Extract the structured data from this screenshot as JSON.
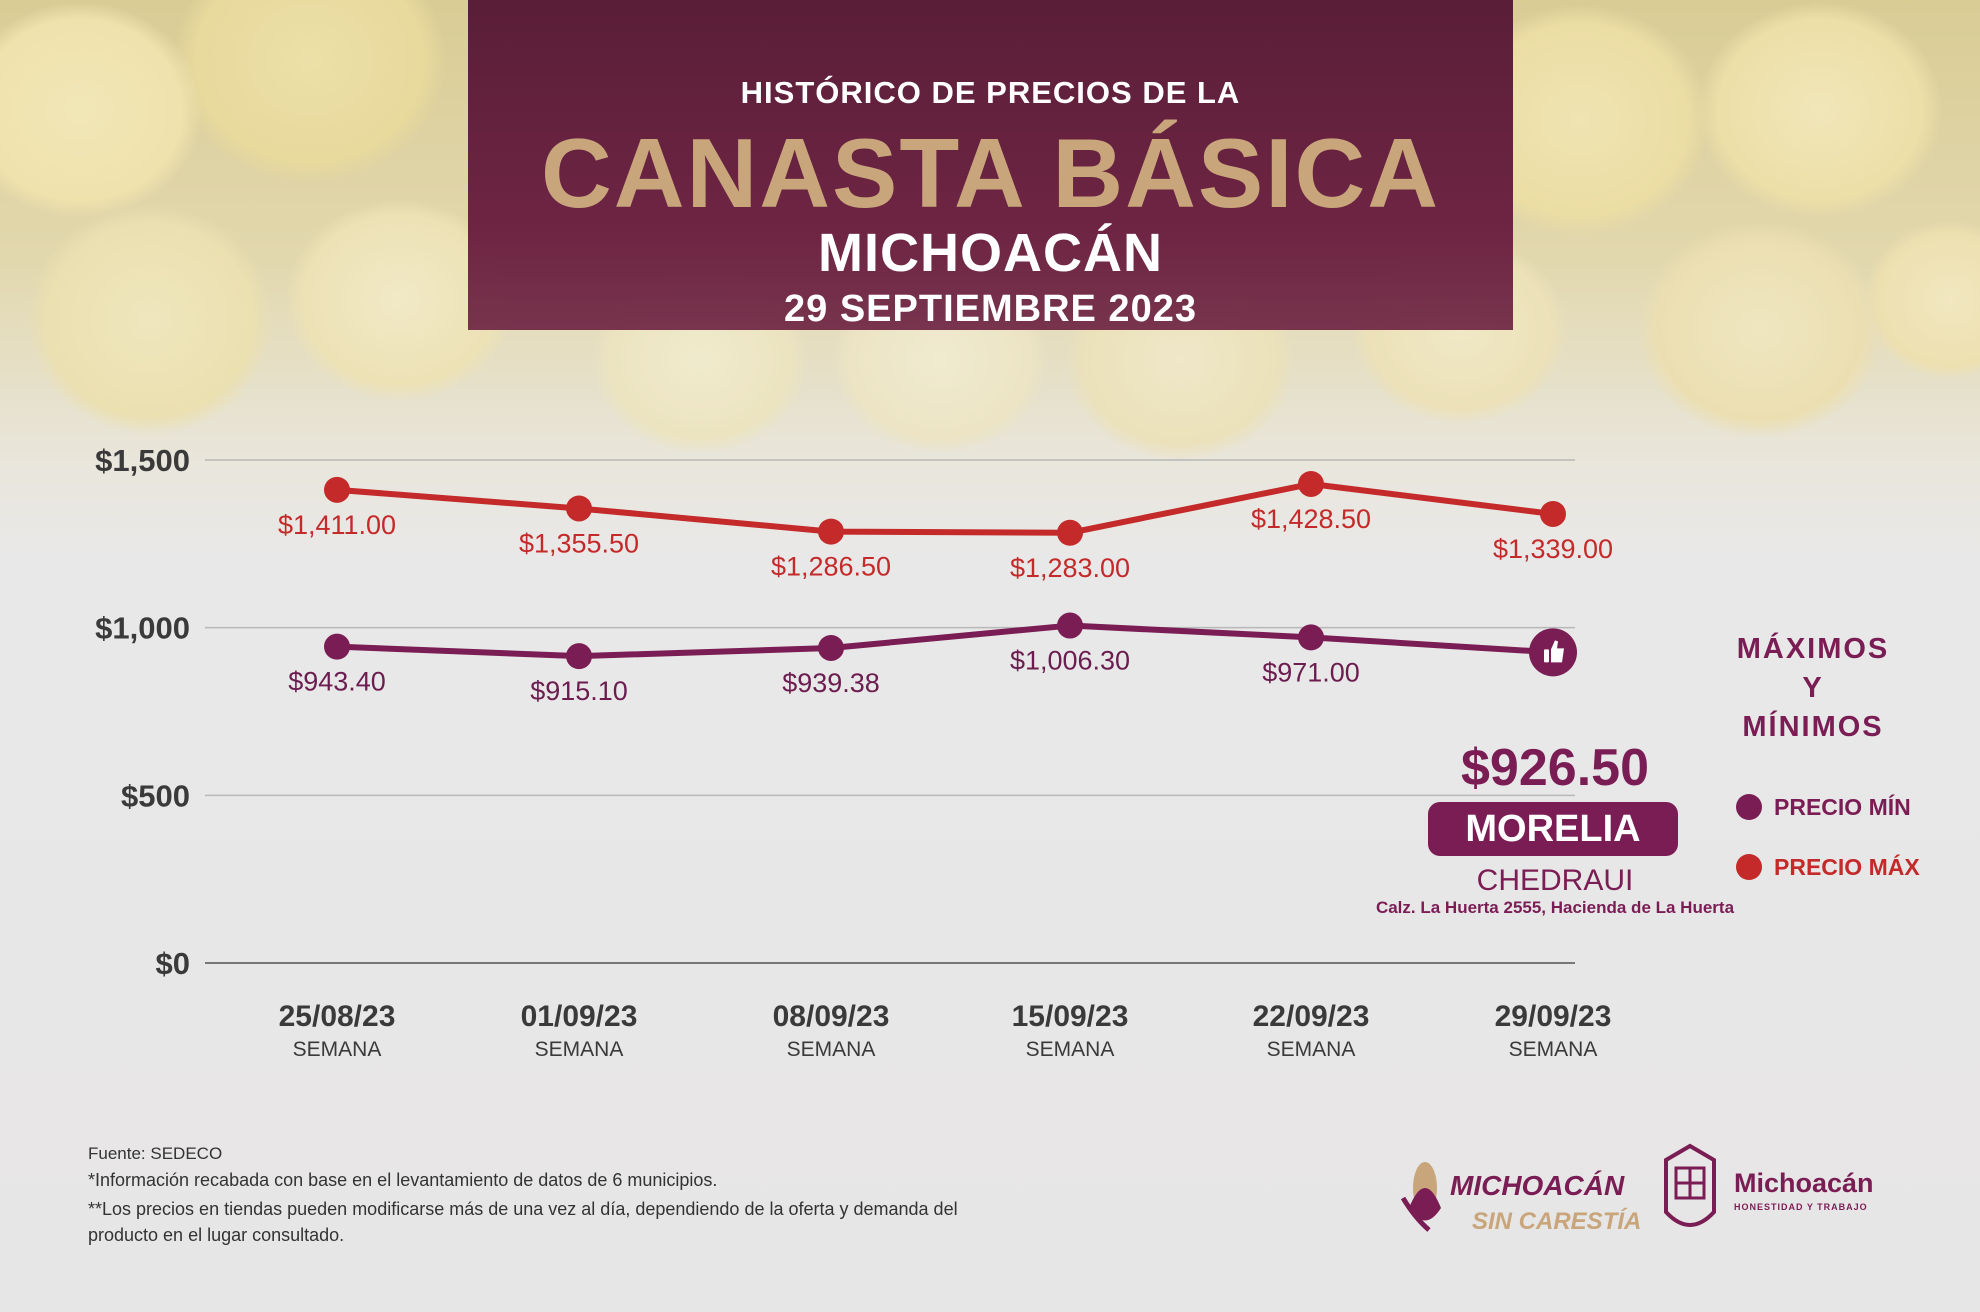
{
  "header": {
    "pretitle": "HISTÓRICO DE PRECIOS DE LA",
    "title": "CANASTA BÁSICA",
    "state": "MICHOACÁN",
    "date": "29 SEPTIEMBRE 2023"
  },
  "chart_data": {
    "type": "line",
    "title": "HISTÓRICO DE PRECIOS DE LA CANASTA BÁSICA",
    "xlabel": "",
    "ylabel": "",
    "ylim": [
      0,
      1500
    ],
    "yticks": [
      0,
      500,
      1000,
      1500
    ],
    "ytick_labels": [
      "$0",
      "$500",
      "$1,000",
      "$1,500"
    ],
    "categories": [
      "25/08/23",
      "01/09/23",
      "08/09/23",
      "15/09/23",
      "22/09/23",
      "29/09/23"
    ],
    "category_sublabel": "SEMANA",
    "grid": true,
    "legend_position": "right",
    "series": [
      {
        "name": "PRECIO MÁX",
        "color": "#c42a2a",
        "values": [
          1411.0,
          1355.5,
          1286.5,
          1283.0,
          1428.5,
          1339.0
        ],
        "labels": [
          "$1,411.00",
          "$1,355.50",
          "$1,286.50",
          "$1,283.00",
          "$1,428.50",
          "$1,339.00"
        ]
      },
      {
        "name": "PRECIO MÍN",
        "color": "#7a1d55",
        "values": [
          943.4,
          915.1,
          939.38,
          1006.3,
          971.0,
          926.5
        ],
        "labels": [
          "$943.40",
          "$915.10",
          "$939.38",
          "$1,006.30",
          "$971.00",
          ""
        ]
      }
    ]
  },
  "callout": {
    "icon": "thumbs-up-icon",
    "price": "$926.50",
    "city": "MORELIA",
    "store": "CHEDRAUI",
    "address": "Calz. La Huerta 2555, Hacienda de La Huerta"
  },
  "legend": {
    "title_lines": [
      "MÁXIMOS",
      "Y",
      "MÍNIMOS"
    ],
    "min_label": "PRECIO MÍN",
    "max_label": "PRECIO MÁX"
  },
  "footer": {
    "source": "Fuente: SEDECO",
    "note1": "*Información recabada con base en el levantamiento de datos de 6 municipios.",
    "note2": "**Los precios en tiendas pueden modificarse más de una vez al día, dependiendo de la oferta y demanda del producto en el lugar consultado."
  },
  "logos": {
    "campaign_line1": "MICHOACÁN",
    "campaign_line2": "SIN CARESTÍA",
    "gov_name": "Michoacán",
    "gov_motto": "HONESTIDAD Y TRABAJO"
  }
}
